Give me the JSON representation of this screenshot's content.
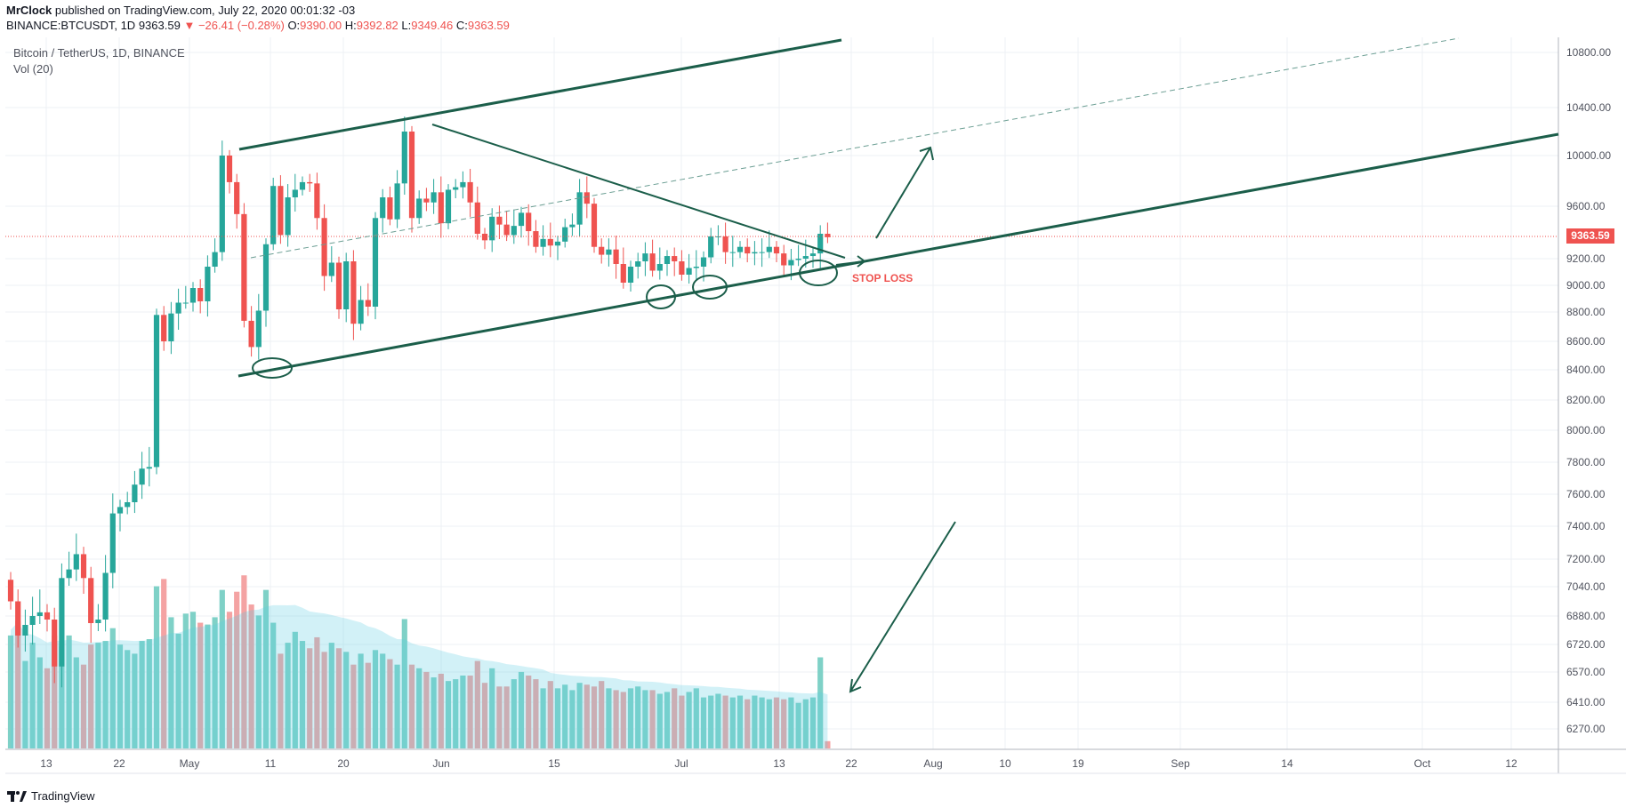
{
  "header": {
    "publisher": "MrClock",
    "published_text": "published on TradingView.com, July 22, 2020 00:01:32 -03",
    "symbol": "BINANCE:BTCUSDT, 1D",
    "last": "9363.59",
    "change_arrow": "▼",
    "change": "−26.41 (−0.28%)",
    "o_label": "O:",
    "o": "9390.00",
    "h_label": "H:",
    "h": "9392.82",
    "l_label": "L:",
    "l": "9349.46",
    "c_label": "C:",
    "c": "9363.59"
  },
  "legend": {
    "title": "Bitcoin / TetherUS, 1D, BINANCE",
    "indicator": "Vol (20)"
  },
  "price_tag": "9363.59",
  "annotation": "STOP LOSS",
  "footer": {
    "brand": "TradingView"
  },
  "colors": {
    "up": "#26a69a",
    "down": "#ef5350",
    "trendline": "#1b5e4a",
    "grid": "#eef1f4",
    "axis_text": "#50535e"
  },
  "icons": {
    "brand_logo": "tradingview-logo-icon"
  },
  "chart_data": {
    "type": "candlestick",
    "x_axis_labels": [
      "13",
      "22",
      "May",
      "11",
      "20",
      "Jun",
      "15",
      "Jul",
      "13",
      "22",
      "Aug",
      "10",
      "19",
      "Sep",
      "14",
      "Oct",
      "12"
    ],
    "y_axis_labels": [
      "10800.00",
      "10400.00",
      "10000.00",
      "9600.00",
      "9200.00",
      "9000.00",
      "8800.00",
      "8600.00",
      "8400.00",
      "8200.00",
      "8000.00",
      "7800.00",
      "7600.00",
      "7400.00",
      "7200.00",
      "7040.00",
      "6880.00",
      "6720.00",
      "6570.00",
      "6410.00",
      "6270.00"
    ],
    "close": [
      6960,
      6770,
      6830,
      6880,
      6900,
      6860,
      6600,
      7090,
      7140,
      7230,
      7090,
      6840,
      6860,
      7120,
      7480,
      7520,
      7550,
      7660,
      7760,
      7770,
      8780,
      8600,
      8790,
      8870,
      8870,
      8980,
      8880,
      9140,
      9250,
      10000,
      9790,
      9540,
      8740,
      8560,
      8810,
      9310,
      9760,
      9380,
      9670,
      9730,
      9790,
      9780,
      9510,
      9070,
      9170,
      8820,
      9180,
      8720,
      8890,
      8840,
      9510,
      9670,
      9500,
      9780,
      10200,
      9510,
      9660,
      9630,
      9710,
      9470,
      9730,
      9750,
      9790,
      9630,
      9390,
      9340,
      9520,
      9460,
      9380,
      9450,
      9550,
      9410,
      9290,
      9350,
      9300,
      9330,
      9440,
      9460,
      9710,
      9620,
      9290,
      9230,
      9270,
      9160,
      9020,
      9140,
      9180,
      9240,
      9110,
      9160,
      9220,
      9180,
      9080,
      9130,
      9140,
      9210,
      9370,
      9370,
      9250,
      9250,
      9290,
      9240,
      9250,
      9250,
      9290,
      9240,
      9150,
      9190,
      9200,
      9220,
      9240,
      9390,
      9363.59
    ],
    "volume_note": "histogram in lower pane with 20-period volume moving average",
    "volume": [
      0.62,
      0.7,
      0.48,
      0.58,
      0.5,
      0.44,
      0.62,
      0.56,
      0.62,
      0.5,
      0.46,
      0.57,
      0.58,
      0.59,
      0.66,
      0.57,
      0.54,
      0.52,
      0.59,
      0.6,
      0.89,
      0.93,
      0.72,
      0.63,
      0.74,
      0.75,
      0.69,
      0.68,
      0.72,
      0.87,
      0.75,
      0.86,
      0.95,
      0.79,
      0.73,
      0.87,
      0.69,
      0.52,
      0.58,
      0.64,
      0.59,
      0.55,
      0.61,
      0.53,
      0.58,
      0.55,
      0.53,
      0.46,
      0.52,
      0.47,
      0.54,
      0.52,
      0.49,
      0.46,
      0.71,
      0.46,
      0.44,
      0.42,
      0.39,
      0.41,
      0.37,
      0.38,
      0.4,
      0.4,
      0.48,
      0.36,
      0.44,
      0.34,
      0.34,
      0.38,
      0.42,
      0.4,
      0.38,
      0.33,
      0.37,
      0.33,
      0.35,
      0.32,
      0.36,
      0.35,
      0.34,
      0.37,
      0.33,
      0.32,
      0.31,
      0.33,
      0.34,
      0.32,
      0.32,
      0.3,
      0.31,
      0.33,
      0.29,
      0.31,
      0.33,
      0.28,
      0.29,
      0.3,
      0.29,
      0.28,
      0.29,
      0.27,
      0.29,
      0.28,
      0.27,
      0.28,
      0.27,
      0.28,
      0.25,
      0.27,
      0.28,
      0.5,
      0.04
    ]
  }
}
